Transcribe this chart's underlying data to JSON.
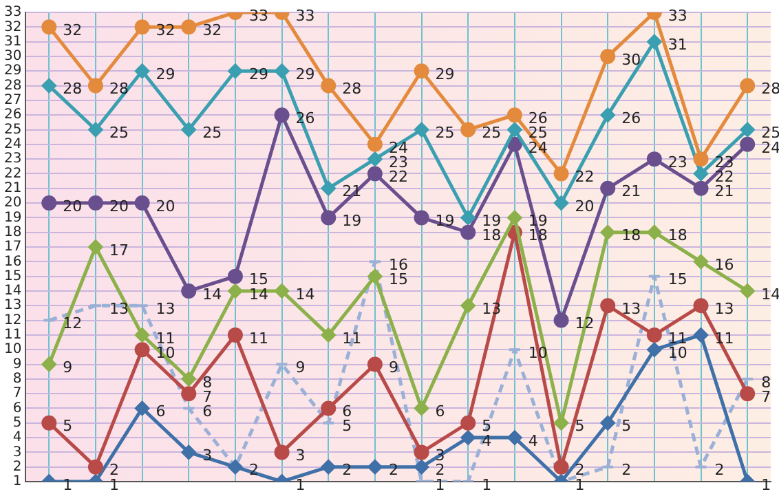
{
  "chart_data": {
    "type": "line",
    "categories": [
      null,
      null,
      null,
      null,
      null,
      null,
      null,
      null,
      null,
      null,
      null,
      null,
      null,
      null,
      null,
      null
    ],
    "series": [
      {
        "color": "#e38a3c",
        "marker": "circle",
        "values": [
          32,
          28,
          32,
          32,
          33,
          33,
          28,
          24,
          29,
          25,
          26,
          22,
          30,
          33,
          23,
          28
        ],
        "value_labels": [
          "32",
          "28",
          "32",
          "32",
          "33",
          "33",
          "28",
          "24",
          "29",
          "25",
          "26",
          "22",
          "30",
          "33",
          "23",
          "28"
        ]
      },
      {
        "color": "#3a9fb0",
        "marker": "diamond",
        "values": [
          28,
          25,
          29,
          25,
          29,
          29,
          21,
          23,
          25,
          19,
          25,
          20,
          26,
          31,
          22,
          25
        ],
        "value_labels": [
          "28",
          "25",
          "29",
          "25",
          "29",
          "29",
          "21",
          "23",
          "25",
          "19",
          "25",
          "20",
          "26",
          "31",
          "22",
          "25"
        ]
      },
      {
        "color": "#6a4f8e",
        "marker": "circle",
        "values": [
          20,
          20,
          20,
          14,
          15,
          26,
          19,
          22,
          19,
          18,
          24,
          12,
          21,
          23,
          21,
          24
        ],
        "value_labels": [
          "20",
          "20",
          "20",
          "14",
          "15",
          "26",
          "19",
          "22",
          "19",
          "18",
          "24",
          "12",
          "21",
          "23",
          "21",
          "24"
        ]
      },
      {
        "color": "#8cb04a",
        "marker": "diamond",
        "values": [
          9,
          17,
          11,
          8,
          14,
          14,
          11,
          15,
          6,
          13,
          19,
          5,
          18,
          18,
          16,
          14
        ],
        "value_labels": [
          "9",
          "17",
          "11",
          "8",
          "14",
          "14",
          "11",
          "15",
          "6",
          "13",
          "19",
          "5",
          "18",
          "18",
          "16",
          "14"
        ]
      },
      {
        "color": "#b84a48",
        "marker": "circle",
        "values": [
          5,
          2,
          10,
          7,
          11,
          3,
          6,
          9,
          3,
          5,
          18,
          2,
          13,
          11,
          13,
          7
        ],
        "value_labels": [
          "5",
          "2",
          "10",
          "7",
          "11",
          "3",
          "6",
          "9",
          "3",
          "5",
          "18",
          "2",
          "13",
          "11",
          "13",
          "7"
        ]
      },
      {
        "color": "#3f70a8",
        "marker": "diamond",
        "values": [
          1,
          1,
          6,
          3,
          2,
          1,
          2,
          2,
          2,
          4,
          4,
          1,
          5,
          10,
          11,
          1
        ],
        "value_labels": [
          "1",
          "1",
          "6",
          "3",
          "2",
          "1",
          "2",
          "2",
          "2",
          "4",
          "4",
          "1",
          "5",
          "10",
          "11",
          "1"
        ]
      },
      {
        "color": "#9bb0d6",
        "marker": "none",
        "line_style": "dashed",
        "values": [
          12,
          13,
          13,
          6,
          2,
          9,
          5,
          16,
          1,
          1,
          10,
          1,
          2,
          15,
          2,
          8
        ],
        "value_labels": [
          "12",
          "13",
          "13",
          "6",
          null,
          "9",
          "5",
          "16",
          "1",
          "1",
          "10",
          null,
          "2",
          "15",
          "2",
          "8"
        ]
      }
    ],
    "ylim": [
      1,
      33
    ],
    "yticks": [
      1,
      2,
      3,
      4,
      5,
      6,
      7,
      8,
      9,
      10,
      11,
      12,
      13,
      14,
      15,
      16,
      17,
      18,
      19,
      20,
      21,
      22,
      23,
      24,
      25,
      26,
      27,
      28,
      29,
      30,
      31,
      32,
      33
    ],
    "grid": true,
    "legend": false,
    "tick_labels": "y"
  }
}
